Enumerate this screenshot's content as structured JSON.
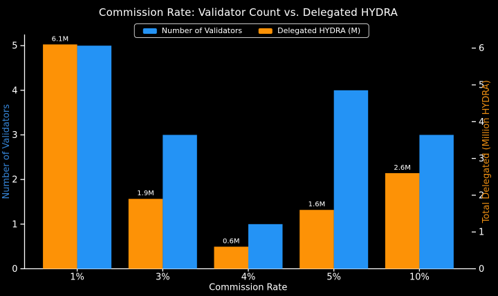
{
  "title": "Commission Rate: Validator Count vs. Delegated HYDRA",
  "legend": {
    "items": [
      {
        "label": "Number of Validators",
        "color": "#2493f5"
      },
      {
        "label": "Delegated HYDRA (M)",
        "color": "#fd9206"
      }
    ]
  },
  "chart_data": {
    "type": "bar",
    "title": "Commission Rate: Validator Count vs. Delegated HYDRA",
    "categories": [
      "1%",
      "3%",
      "4%",
      "5%",
      "10%"
    ],
    "series": [
      {
        "name": "Delegated HYDRA (M)",
        "axis": "right",
        "pair_position": "left",
        "color": "#fd9206",
        "values": [
          6.1,
          1.9,
          0.6,
          1.6,
          2.6
        ],
        "value_labels": [
          "6.1M",
          "1.9M",
          "0.6M",
          "1.6M",
          "2.6M"
        ]
      },
      {
        "name": "Number of Validators",
        "axis": "left",
        "pair_position": "right",
        "color": "#2493f5",
        "values": [
          5,
          3,
          1,
          4,
          3
        ],
        "value_labels": []
      }
    ],
    "xlabel": "Commission Rate",
    "left_axis": {
      "label": "Number of Validators",
      "label_color": "#3584d6",
      "tick_color": "#ffffff",
      "ticks": [
        0,
        1,
        2,
        3,
        4,
        5
      ],
      "lim": [
        0,
        5.25
      ]
    },
    "right_axis": {
      "label": "Total Delegated (Million HYDRA)",
      "label_color": "#ed8e12",
      "tick_color": "#ffffff",
      "ticks": [
        0,
        1,
        2,
        3,
        4,
        5,
        6
      ],
      "lim": [
        0,
        6.37
      ]
    },
    "legend_position": "upper center",
    "grid": false,
    "background": "#000000",
    "text_color": "#ffffff",
    "spine_color": "#ffffff"
  }
}
